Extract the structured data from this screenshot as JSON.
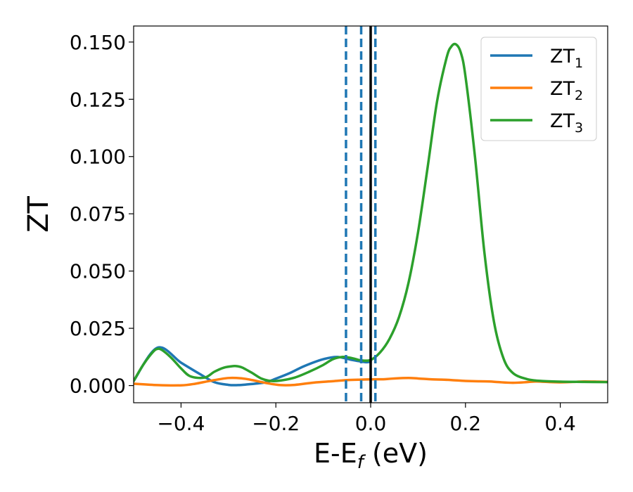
{
  "chart_data": {
    "type": "line",
    "xlabel": {
      "main": "E-E",
      "sub": "f",
      "tail": " (eV)"
    },
    "ylabel": "ZT",
    "xlim": [
      -0.5,
      0.5
    ],
    "ylim": [
      -0.0075,
      0.157
    ],
    "xticks": [
      -0.4,
      -0.2,
      0.0,
      0.2,
      0.4
    ],
    "xtick_labels": [
      "−0.4",
      "−0.2",
      "0.0",
      "0.2",
      "0.4"
    ],
    "yticks": [
      0.0,
      0.025,
      0.05,
      0.075,
      0.1,
      0.125,
      0.15
    ],
    "ytick_labels": [
      "0.000",
      "0.025",
      "0.050",
      "0.075",
      "0.100",
      "0.125",
      "0.150"
    ],
    "legend_position": "top-right",
    "series": [
      {
        "name": "ZT",
        "sub": "1",
        "color": "#1f77b4",
        "x": [
          -0.5,
          -0.45,
          -0.4,
          -0.36,
          -0.33,
          -0.3,
          -0.28,
          -0.26,
          -0.24,
          -0.22,
          -0.2,
          -0.17,
          -0.14,
          -0.1,
          -0.07,
          -0.04,
          -0.01,
          0.0
        ],
        "y": [
          0.002,
          0.0165,
          0.01,
          0.005,
          0.0015,
          0.0003,
          0.0002,
          0.0005,
          0.0009,
          0.0015,
          0.003,
          0.0055,
          0.0085,
          0.0115,
          0.0125,
          0.0112,
          0.0102,
          0.0105
        ]
      },
      {
        "name": "ZT",
        "sub": "2",
        "color": "#ff7f0e",
        "x": [
          -0.5,
          -0.45,
          -0.4,
          -0.37,
          -0.34,
          -0.3,
          -0.27,
          -0.25,
          -0.22,
          -0.19,
          -0.16,
          -0.12,
          -0.08,
          -0.05,
          -0.02,
          0.0,
          0.03,
          0.05,
          0.08,
          0.1,
          0.13,
          0.15,
          0.17,
          0.2,
          0.22,
          0.25,
          0.27,
          0.3,
          0.33,
          0.35,
          0.38,
          0.4,
          0.43,
          0.45,
          0.48,
          0.5
        ],
        "y": [
          0.0008,
          0.0002,
          0.0001,
          0.0008,
          0.002,
          0.0033,
          0.0031,
          0.0024,
          0.0011,
          0.0002,
          0.0003,
          0.0013,
          0.0019,
          0.0024,
          0.0026,
          0.0027,
          0.0028,
          0.0031,
          0.0033,
          0.0031,
          0.0027,
          0.0026,
          0.0024,
          0.002,
          0.0019,
          0.0018,
          0.0015,
          0.0012,
          0.0015,
          0.0018,
          0.0015,
          0.0014,
          0.0016,
          0.0018,
          0.0017,
          0.0016
        ]
      },
      {
        "name": "ZT",
        "sub": "3",
        "color": "#2ca02c",
        "x": [
          -0.5,
          -0.48,
          -0.46,
          -0.45,
          -0.44,
          -0.42,
          -0.4,
          -0.38,
          -0.35,
          -0.33,
          -0.31,
          -0.29,
          -0.28,
          -0.27,
          -0.25,
          -0.23,
          -0.21,
          -0.19,
          -0.16,
          -0.13,
          -0.1,
          -0.08,
          -0.06,
          -0.04,
          -0.02,
          0.0,
          0.02,
          0.04,
          0.06,
          0.08,
          0.1,
          0.12,
          0.14,
          0.16,
          0.17,
          0.18,
          0.19,
          0.2,
          0.22,
          0.24,
          0.26,
          0.28,
          0.3,
          0.33,
          0.36,
          0.4,
          0.45,
          0.5
        ],
        "y": [
          0.002,
          0.009,
          0.0145,
          0.016,
          0.0155,
          0.012,
          0.0075,
          0.004,
          0.0035,
          0.006,
          0.0078,
          0.0085,
          0.0084,
          0.0078,
          0.0055,
          0.003,
          0.002,
          0.0022,
          0.0035,
          0.006,
          0.009,
          0.0115,
          0.0125,
          0.012,
          0.011,
          0.0112,
          0.0145,
          0.0205,
          0.03,
          0.045,
          0.067,
          0.095,
          0.124,
          0.143,
          0.148,
          0.149,
          0.1455,
          0.135,
          0.1,
          0.058,
          0.028,
          0.012,
          0.0055,
          0.0028,
          0.002,
          0.0017,
          0.0016,
          0.0015
        ]
      }
    ],
    "vlines": [
      {
        "x": 0.0,
        "style": "solid",
        "color": "#000000"
      },
      {
        "x": -0.052,
        "style": "dashed",
        "color": "#1f77b4"
      },
      {
        "x": -0.02,
        "style": "dashed",
        "color": "#1f77b4"
      },
      {
        "x": 0.01,
        "style": "dashed",
        "color": "#1f77b4"
      }
    ]
  }
}
